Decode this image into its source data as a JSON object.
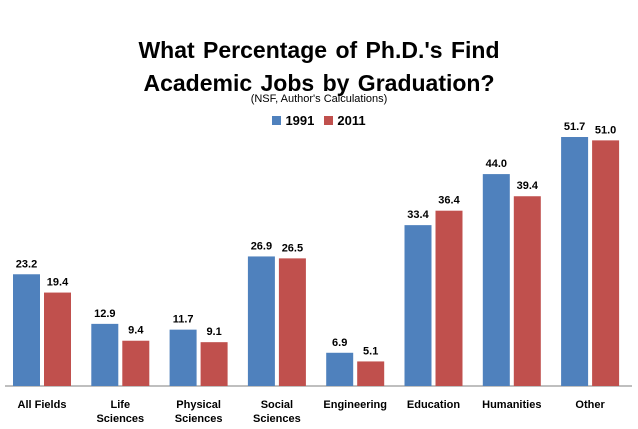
{
  "chart_data": {
    "type": "bar",
    "title_lines": [
      "What Percentage of Ph.D.'s Find",
      "Academic Jobs by Graduation?"
    ],
    "subtitle": "(NSF, Author's Calculations)",
    "categories": [
      [
        "All Fields"
      ],
      [
        "Life",
        "Sciences"
      ],
      [
        "Physical",
        "Sciences"
      ],
      [
        "Social",
        "Sciences"
      ],
      [
        "Engineering"
      ],
      [
        "Education"
      ],
      [
        "Humanities"
      ],
      [
        "Other"
      ]
    ],
    "series": [
      {
        "name": "1991",
        "color": "#4f81bd",
        "values": [
          23.2,
          12.9,
          11.7,
          26.9,
          6.9,
          33.4,
          44.0,
          51.7
        ],
        "labels": [
          "23.2",
          "12.9",
          "11.7",
          "26.9",
          "6.9",
          "33.4",
          "44.0",
          "51.7"
        ]
      },
      {
        "name": "2011",
        "color": "#c0504d",
        "values": [
          19.4,
          9.4,
          9.1,
          26.5,
          5.1,
          36.4,
          39.4,
          51.0
        ],
        "labels": [
          "19.4",
          "9.4",
          "9.1",
          "26.5",
          "5.1",
          "36.4",
          "39.4",
          "51.0"
        ]
      }
    ],
    "ylim": [
      0,
      51.7
    ],
    "legend": "top-center",
    "grid": false
  }
}
